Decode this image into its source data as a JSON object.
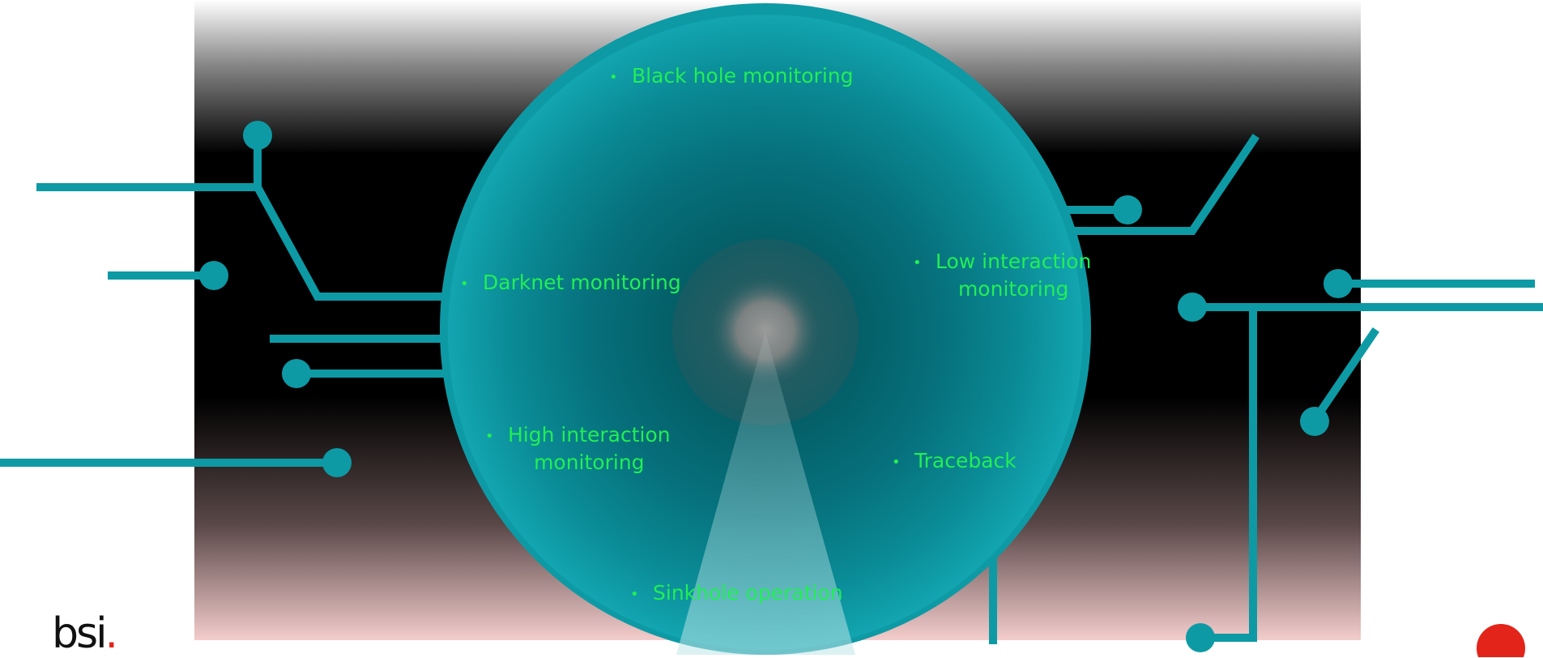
{
  "diagram": {
    "labels": [
      {
        "id": "black-hole",
        "bullet": "•",
        "lines": [
          "Black hole monitoring"
        ]
      },
      {
        "id": "darknet",
        "bullet": "•",
        "lines": [
          "Darknet monitoring"
        ]
      },
      {
        "id": "low-interaction",
        "bullet": "•",
        "lines": [
          "Low interaction",
          "monitoring"
        ]
      },
      {
        "id": "high-interaction",
        "bullet": "•",
        "lines": [
          "High interaction",
          "monitoring"
        ]
      },
      {
        "id": "traceback",
        "bullet": "•",
        "lines": [
          "Traceback"
        ]
      },
      {
        "id": "sinkhole",
        "bullet": "•",
        "lines": [
          "Sinkhole operation"
        ]
      }
    ]
  },
  "logo": {
    "text": "bsi",
    "dot": "."
  },
  "colors": {
    "accent": "#0d9aa5",
    "label": "#22ee55",
    "brand_red": "#e3241b"
  }
}
